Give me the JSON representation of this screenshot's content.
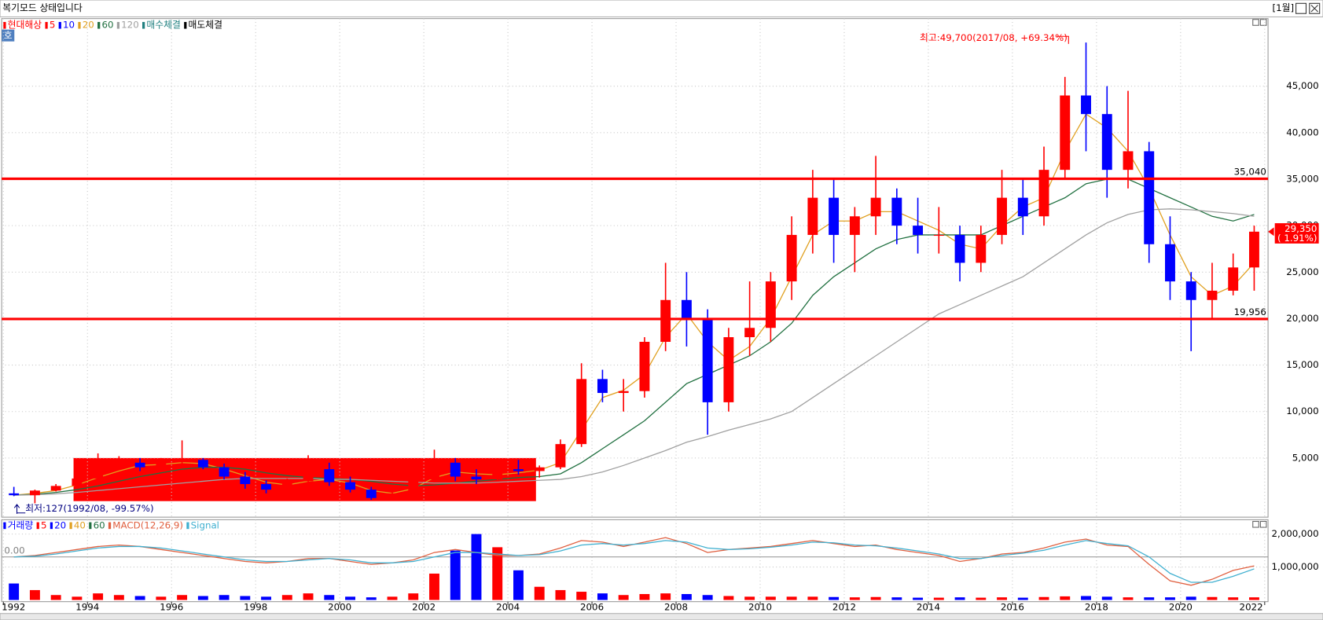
{
  "window": {
    "title": "복기모드 상태입니다",
    "period": "[1월]",
    "badge": "호"
  },
  "chart_data": [
    {
      "type": "candlestick",
      "x": [
        1992.25,
        1992.75,
        1993.25,
        1993.75,
        1994.25,
        1994.75,
        1995.25,
        1995.75,
        1996.25,
        1996.75,
        1997.25,
        1997.75,
        1998.25,
        1998.75,
        1999.25,
        1999.75,
        2000.25,
        2000.75,
        2001.25,
        2001.75,
        2002.25,
        2002.75,
        2003.25,
        2003.75,
        2004.25,
        2004.75,
        2005.25,
        2005.75,
        2006.25,
        2006.75,
        2007.25,
        2007.75,
        2008.25,
        2008.75,
        2009.25,
        2009.75,
        2010.25,
        2010.75,
        2011.25,
        2011.75,
        2012.25,
        2012.75,
        2013.25,
        2013.75,
        2014.25,
        2014.75,
        2015.25,
        2015.75,
        2016.25,
        2016.75,
        2017.25,
        2017.75,
        2018.25,
        2018.75,
        2019.25,
        2019.75,
        2020.25,
        2020.75,
        2021.25,
        2021.75
      ],
      "open": [
        1200,
        1000,
        1500,
        2000,
        2800,
        4200,
        4500,
        4000,
        4600,
        4800,
        4000,
        3000,
        2200,
        1600,
        2500,
        3800,
        2400,
        1600,
        700,
        1200,
        2700,
        4500,
        3000,
        2700,
        3800,
        3600,
        4000,
        6500,
        13500,
        12000,
        12200,
        17500,
        22000,
        20000,
        11000,
        18000,
        19000,
        24000,
        29000,
        33000,
        29000,
        31000,
        33000,
        30000,
        29000,
        29000,
        26000,
        29000,
        33000,
        31000,
        36000,
        44000,
        42000,
        36000,
        38000,
        28000,
        24000,
        22000,
        23000,
        25500
      ],
      "high": [
        1900,
        1600,
        2200,
        3000,
        5500,
        5200,
        5000,
        5000,
        6900,
        5000,
        4400,
        3500,
        2600,
        2800,
        5300,
        4500,
        3000,
        1900,
        1500,
        3000,
        5900,
        5000,
        3800,
        4200,
        4800,
        4200,
        7000,
        15200,
        14500,
        13500,
        18000,
        26000,
        25000,
        21000,
        19000,
        24000,
        25000,
        31000,
        36000,
        35000,
        32000,
        37500,
        34000,
        33000,
        32000,
        30000,
        30000,
        36000,
        35000,
        38500,
        46000,
        49700,
        45000,
        44500,
        39000,
        31000,
        25000,
        26000,
        27000,
        30000
      ],
      "low": [
        900,
        127,
        1400,
        1800,
        2500,
        3700,
        3600,
        3800,
        4300,
        3800,
        2700,
        1700,
        1200,
        1300,
        2300,
        2000,
        1300,
        500,
        400,
        1000,
        2500,
        2500,
        2200,
        2500,
        3200,
        2900,
        3800,
        6200,
        11000,
        10000,
        11500,
        16500,
        17000,
        7500,
        10000,
        16000,
        17500,
        22000,
        27000,
        26000,
        25000,
        29000,
        28000,
        27000,
        27000,
        24000,
        25000,
        28000,
        29000,
        30000,
        35000,
        38000,
        33000,
        34000,
        26000,
        22000,
        16500,
        19956,
        22500,
        23000
      ],
      "close": [
        1000,
        1500,
        2000,
        2800,
        4200,
        4500,
        4000,
        4600,
        4800,
        4000,
        3000,
        2200,
        1600,
        2500,
        3800,
        2400,
        1600,
        700,
        1200,
        2700,
        4500,
        3000,
        2700,
        3800,
        3600,
        4000,
        6500,
        13500,
        12000,
        12200,
        17500,
        22000,
        20000,
        11000,
        18000,
        19000,
        24000,
        29000,
        33000,
        29000,
        31000,
        33000,
        30000,
        29000,
        29000,
        26000,
        29000,
        33000,
        31000,
        36000,
        44000,
        42000,
        36000,
        38000,
        28000,
        24000,
        22000,
        23000,
        25500,
        29350
      ],
      "up_color": "#ff0000",
      "down_color": "#0000ff",
      "xlim": [
        1991.96,
        2022.08
      ],
      "ylim": [
        -1360,
        52270
      ],
      "yticks": [
        {
          "value": 5000,
          "label": "5,000"
        },
        {
          "value": 10000,
          "label": "10,000"
        },
        {
          "value": 15000,
          "label": "15,000"
        },
        {
          "value": 20000,
          "label": "20,000"
        },
        {
          "value": 25000,
          "label": "25,000"
        },
        {
          "value": 30000,
          "label": "30,000"
        },
        {
          "value": 35000,
          "label": "35,000"
        },
        {
          "value": 40000,
          "label": "40,000"
        },
        {
          "value": 45000,
          "label": "45,000"
        }
      ],
      "grid": true,
      "legend": [
        {
          "name": "현대해상",
          "color": "#ff0000"
        },
        {
          "name": "5",
          "color": "#ff0000"
        },
        {
          "name": "10",
          "color": "#0000ff"
        },
        {
          "name": "20",
          "color": "#e0a020",
          "values": [
            1000,
            1200,
            1500,
            2100,
            2900,
            3600,
            4200,
            4300,
            4500,
            4400,
            3800,
            3100,
            2400,
            2100,
            2500,
            2700,
            2300,
            1500,
            1200,
            1700,
            2900,
            3500,
            3300,
            3200,
            3400,
            3700,
            4500,
            8000,
            11500,
            12300,
            14000,
            18000,
            20500,
            17500,
            15500,
            17000,
            20000,
            24500,
            29000,
            30500,
            30500,
            31500,
            31500,
            30500,
            29500,
            28000,
            27500,
            30000,
            32000,
            33000,
            38000,
            42000,
            40500,
            38000,
            34000,
            29000,
            24500,
            22500,
            23500,
            26000
          ]
        },
        {
          "name": "60",
          "color": "#207040",
          "values": [
            1000,
            1100,
            1300,
            1600,
            2000,
            2500,
            3000,
            3400,
            3800,
            4000,
            4000,
            3800,
            3400,
            3100,
            2900,
            2800,
            2700,
            2500,
            2200,
            2000,
            2100,
            2300,
            2500,
            2700,
            2900,
            3000,
            3300,
            4500,
            6000,
            7500,
            9000,
            11000,
            13000,
            14000,
            15000,
            16000,
            17500,
            19500,
            22500,
            24500,
            26000,
            27500,
            28500,
            29000,
            29000,
            29000,
            29000,
            30000,
            31000,
            32000,
            33000,
            34500,
            35000,
            35000,
            34000,
            33000,
            32000,
            31000,
            30500,
            31200
          ]
        },
        {
          "name": "120",
          "color": "#a0a0a0",
          "values": [
            1000,
            1050,
            1150,
            1300,
            1500,
            1700,
            1900,
            2100,
            2300,
            2500,
            2700,
            2800,
            2800,
            2800,
            2800,
            2700,
            2700,
            2600,
            2500,
            2400,
            2300,
            2300,
            2300,
            2400,
            2500,
            2600,
            2700,
            3000,
            3500,
            4200,
            5000,
            5800,
            6700,
            7300,
            8000,
            8600,
            9200,
            10000,
            11500,
            13000,
            14500,
            16000,
            17500,
            19000,
            20500,
            21500,
            22500,
            23500,
            24500,
            26000,
            27500,
            29000,
            30300,
            31200,
            31700,
            31800,
            31700,
            31500,
            31300,
            31000
          ]
        },
        {
          "name": "매수체결",
          "color": "#208080"
        },
        {
          "name": "매도체결",
          "color": "#000000"
        }
      ],
      "hlines": [
        {
          "value": 35040,
          "label": "35,040",
          "color": "#ff0000"
        },
        {
          "value": 19956,
          "label": "19,956",
          "color": "#ff0000"
        }
      ],
      "annotations": [
        {
          "text": "최고:49,700(2017/08, +69.34%)",
          "color": "#ff0000"
        },
        {
          "text": "최저:127(1992/08, -99.57%)",
          "color": "#000080"
        }
      ],
      "last_price": {
        "value": 29350,
        "label": "29,350",
        "change": "( 1.91%)",
        "color": "#ff0000"
      }
    },
    {
      "type": "bar",
      "values": [
        500000,
        300000,
        150000,
        100000,
        200000,
        150000,
        120000,
        100000,
        150000,
        120000,
        150000,
        120000,
        100000,
        150000,
        200000,
        150000,
        100000,
        80000,
        100000,
        200000,
        800000,
        1500000,
        2000000,
        1600000,
        900000,
        400000,
        300000,
        250000,
        200000,
        150000,
        180000,
        200000,
        180000,
        150000,
        120000,
        100000,
        100000,
        100000,
        100000,
        90000,
        80000,
        90000,
        80000,
        70000,
        70000,
        80000,
        70000,
        80000,
        70000,
        90000,
        110000,
        120000,
        100000,
        80000,
        80000,
        80000,
        100000,
        90000,
        80000,
        80000
      ],
      "ylim": [
        -51000,
        2435000
      ],
      "yticks": [
        {
          "value": 1000000,
          "label": "1,000,000"
        },
        {
          "value": 2000000,
          "label": "2,000,000"
        }
      ],
      "y2lim": [
        -3000,
        2500
      ],
      "y2ticks": [
        {
          "value": 0,
          "label": "0.00"
        }
      ],
      "xlim": [
        1991.96,
        2022.08
      ],
      "xticks": [
        1992,
        1994,
        1996,
        1998,
        2000,
        2002,
        2004,
        2006,
        2008,
        2010,
        2012,
        2014,
        2016,
        2018,
        2020,
        2022
      ],
      "legend": [
        {
          "name": "거래량",
          "color": "#0000ff"
        },
        {
          "name": "5",
          "color": "#ff0000"
        },
        {
          "name": "20",
          "color": "#0000ff"
        },
        {
          "name": "40",
          "color": "#e0a020"
        },
        {
          "name": "60",
          "color": "#207040"
        }
      ],
      "series": [
        {
          "name": "MACD(12,26,9)",
          "color": "#e06040",
          "axis": "y2",
          "values": [
            0,
            100,
            300,
            500,
            700,
            800,
            700,
            500,
            300,
            100,
            -100,
            -300,
            -400,
            -300,
            -100,
            -100,
            -300,
            -500,
            -400,
            -200,
            300,
            500,
            300,
            100,
            100,
            200,
            600,
            1100,
            1000,
            700,
            1000,
            1300,
            900,
            300,
            500,
            600,
            700,
            900,
            1100,
            900,
            700,
            800,
            500,
            300,
            100,
            -300,
            -100,
            200,
            300,
            600,
            1000,
            1200,
            800,
            700,
            -500,
            -1600,
            -1900,
            -1500,
            -900,
            -600
          ]
        },
        {
          "name": "Signal",
          "color": "#40b0d0",
          "axis": "y2",
          "values": [
            0,
            50,
            200,
            400,
            600,
            700,
            700,
            600,
            400,
            200,
            0,
            -200,
            -300,
            -300,
            -200,
            -100,
            -200,
            -400,
            -400,
            -300,
            0,
            300,
            300,
            200,
            100,
            150,
            400,
            800,
            900,
            800,
            900,
            1100,
            1000,
            600,
            500,
            550,
            650,
            800,
            1000,
            950,
            800,
            750,
            600,
            400,
            200,
            -100,
            -100,
            100,
            250,
            450,
            800,
            1100,
            900,
            750,
            0,
            -1100,
            -1700,
            -1700,
            -1300,
            -800
          ]
        }
      ]
    }
  ]
}
